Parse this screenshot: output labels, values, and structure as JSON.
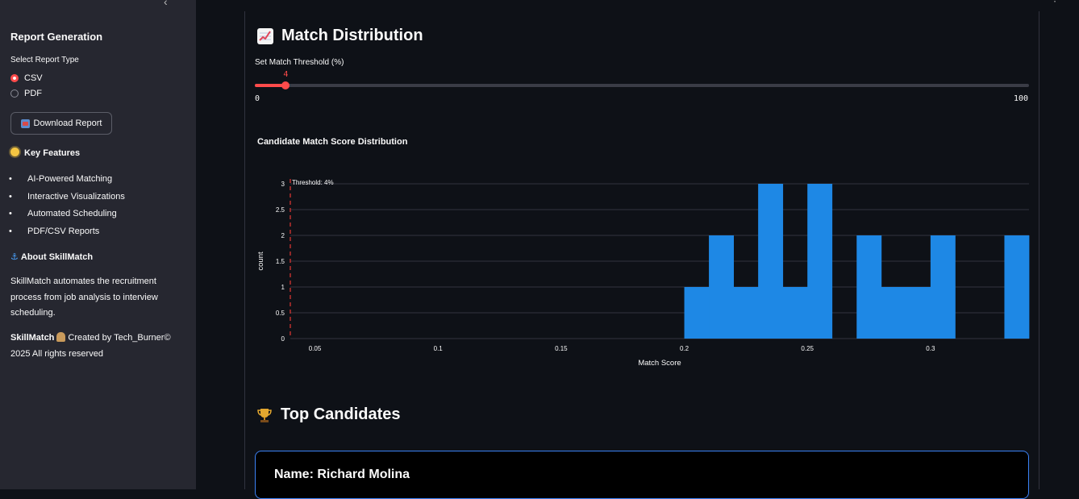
{
  "sidebar": {
    "report_heading": "Report Generation",
    "report_type_label": "Select Report Type",
    "report_options": [
      "CSV",
      "PDF"
    ],
    "selected_report": "CSV",
    "download_label": "Download Report",
    "features_heading": "Key Features",
    "features": [
      "AI-Powered Matching",
      "Interactive Visualizations",
      "Automated Scheduling",
      "PDF/CSV Reports"
    ],
    "about_heading": "About SkillMatch",
    "about_text": "SkillMatch automates the recruitment process from job analysis to interview scheduling.",
    "footer_brand": "SkillMatch",
    "footer_text": "Created by Tech_Burner© 2025 All rights reserved"
  },
  "main": {
    "distribution_title": "Match Distribution",
    "threshold": {
      "label": "Set Match Threshold (%)",
      "value": 4,
      "min": 0,
      "max": 100,
      "value_text": "4",
      "min_text": "0",
      "max_text": "100"
    },
    "chart_title": "Candidate Match Score Distribution",
    "top_candidates_title": "Top Candidates",
    "first_candidate": "Name: Richard Molina"
  },
  "chart_data": {
    "type": "bar",
    "title": "Candidate Match Score Distribution",
    "xlabel": "Match Score",
    "ylabel": "count",
    "xlim": [
      0.04,
      0.34
    ],
    "ylim": [
      0,
      3
    ],
    "x_ticks": [
      "0.05",
      "0.1",
      "0.15",
      "0.2",
      "0.25",
      "0.3"
    ],
    "y_ticks": [
      "0",
      "0.5",
      "1",
      "1.5",
      "2",
      "2.5",
      "3"
    ],
    "bin_width": 0.01,
    "bins": [
      {
        "start": 0.2,
        "end": 0.21,
        "count": 1
      },
      {
        "start": 0.21,
        "end": 0.22,
        "count": 2
      },
      {
        "start": 0.22,
        "end": 0.23,
        "count": 1
      },
      {
        "start": 0.23,
        "end": 0.24,
        "count": 3
      },
      {
        "start": 0.24,
        "end": 0.25,
        "count": 1
      },
      {
        "start": 0.25,
        "end": 0.26,
        "count": 3
      },
      {
        "start": 0.27,
        "end": 0.28,
        "count": 2
      },
      {
        "start": 0.28,
        "end": 0.29,
        "count": 1
      },
      {
        "start": 0.29,
        "end": 0.3,
        "count": 1
      },
      {
        "start": 0.3,
        "end": 0.31,
        "count": 2
      },
      {
        "start": 0.33,
        "end": 0.34,
        "count": 2
      }
    ],
    "threshold_line": {
      "x": 0.04,
      "label": "Threshold: 4%"
    },
    "bar_color": "#1e88e5",
    "threshold_color": "#e53935",
    "grid": true
  },
  "colors": {
    "accent": "#ff4b4b",
    "background": "#0e1117",
    "sidebar": "#262730",
    "card_border": "#3b82f6"
  }
}
